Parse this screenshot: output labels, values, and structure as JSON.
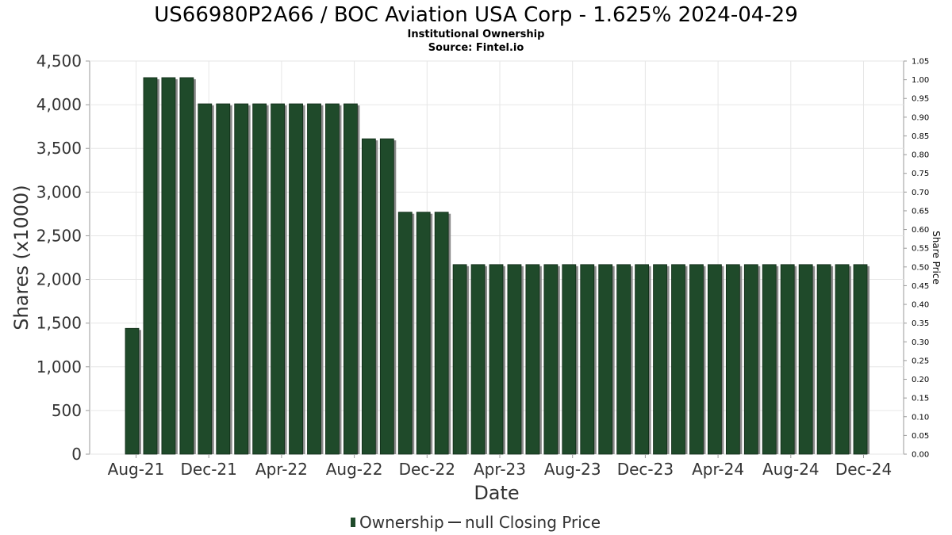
{
  "chart_data": {
    "type": "bar",
    "title": "US66980P2A66 / BOC Aviation USA Corp - 1.625% 2024-04-29",
    "subtitle_lines": [
      "Institutional Ownership",
      "Source: Fintel.io"
    ],
    "xlabel": "Date",
    "ylabel": "Shares (x1000)",
    "y2label": "Share Price",
    "ylim": [
      0,
      4500
    ],
    "y2lim": [
      0,
      1.05
    ],
    "yticks": [
      "0",
      "500",
      "1,000",
      "1,500",
      "2,000",
      "2,500",
      "3,000",
      "3,500",
      "4,000",
      "4,500"
    ],
    "y2ticks": [
      "0.00",
      "0.05",
      "0.10",
      "0.15",
      "0.20",
      "0.25",
      "0.30",
      "0.35",
      "0.40",
      "0.45",
      "0.50",
      "0.55",
      "0.60",
      "0.65",
      "0.70",
      "0.75",
      "0.80",
      "0.85",
      "0.90",
      "0.95",
      "1.00",
      "1.05"
    ],
    "xticks": [
      "Aug-21",
      "Dec-21",
      "Apr-22",
      "Aug-22",
      "Dec-22",
      "Apr-23",
      "Aug-23",
      "Dec-23",
      "Apr-24",
      "Aug-24",
      "Dec-24"
    ],
    "grid": true,
    "legend_position": "bottom",
    "series": [
      {
        "name": "Ownership",
        "color": "#1f4a2a",
        "values": [
          1440,
          4310,
          4310,
          4310,
          4010,
          4010,
          4010,
          4010,
          4010,
          4010,
          4010,
          4010,
          4010,
          3610,
          3610,
          2770,
          2770,
          2770,
          2170,
          2170,
          2170,
          2170,
          2170,
          2170,
          2170,
          2170,
          2170,
          2170,
          2170,
          2170,
          2170,
          2170,
          2170,
          2170,
          2170,
          2170,
          2170,
          2170,
          2170,
          2170,
          2170
        ]
      },
      {
        "name": "null Closing Price",
        "color": "#333333",
        "values": []
      }
    ]
  }
}
